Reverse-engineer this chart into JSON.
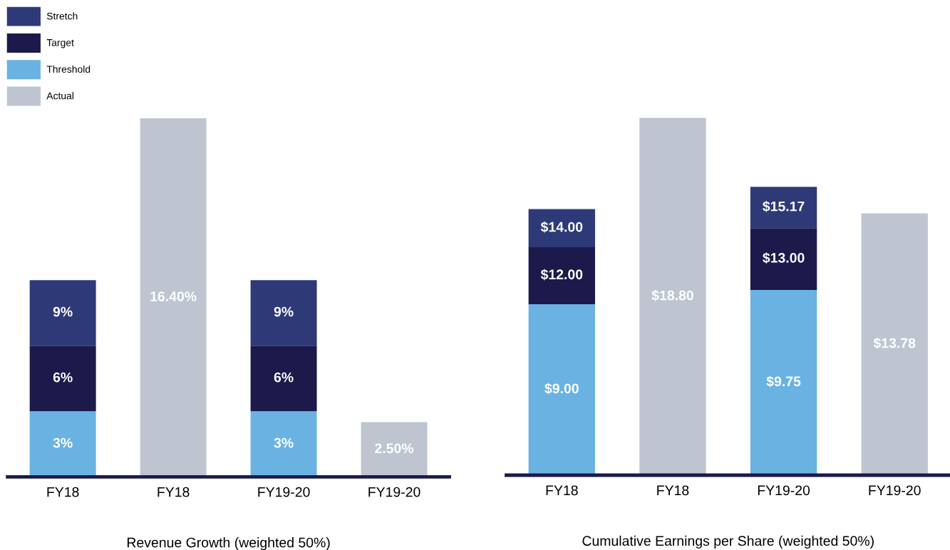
{
  "chart_data": [
    {
      "type": "bar",
      "stacked": true,
      "xlabel": "Revenue Growth (weighted 50%)",
      "categories": [
        "FY18",
        "FY18",
        "FY19-20",
        "FY19-20"
      ],
      "tick_labels": "x",
      "legend": "top left",
      "series": [
        {
          "name": "Actual",
          "color": "#bec5d1",
          "values": [
            null,
            16.4,
            null,
            2.5
          ],
          "value_labels": [
            null,
            "16.40%",
            null,
            "2.50%"
          ]
        },
        {
          "name": "Threshold",
          "color": "#6ab2e2",
          "values": [
            3,
            null,
            3,
            null
          ],
          "value_labels": [
            "3%",
            null,
            "3%",
            null
          ]
        },
        {
          "name": "Target",
          "color": "#1b1a4a",
          "values": [
            3,
            null,
            3,
            null
          ]
        },
        {
          "name": "Stretch",
          "color": "#2e3a78",
          "values": [
            3,
            null,
            3,
            null
          ]
        }
      ],
      "annotations": [
        {
          "text": "6%",
          "x": "FY18",
          "y": 6
        },
        {
          "text": "9%",
          "x": "FY18",
          "y": 9
        },
        {
          "text": "6%",
          "x": "FY19-20",
          "y": 6
        },
        {
          "text": "9%",
          "x": "FY19-20",
          "y": 9
        }
      ]
    },
    {
      "type": "bar",
      "stacked": true,
      "xlabel": "Cumulative Earnings per Share (weighted 50%)",
      "categories": [
        "FY18",
        "FY18",
        "FY19-20",
        "FY19-20"
      ],
      "tick_labels": "x",
      "series": [
        {
          "color": "#bec5d1",
          "values": [
            null,
            18.8,
            null,
            13.78
          ],
          "value_labels": [
            null,
            "$18.80",
            null,
            "$13.78"
          ]
        },
        {
          "color": "#6ab2e2",
          "values": [
            9.0,
            null,
            9.75,
            null
          ],
          "value_labels": [
            "$9.00",
            null,
            "$9.75",
            null
          ]
        },
        {
          "color": "#1b1a4a",
          "values": [
            3.0,
            null,
            3.25,
            null
          ]
        },
        {
          "color": "#2e3a78",
          "values": [
            2.0,
            null,
            2.17,
            null
          ]
        }
      ],
      "annotations": [
        {
          "text": "$12.00",
          "x": "FY18",
          "y": 12.0
        },
        {
          "text": "$14.00",
          "x": "FY18",
          "y": 14.0
        },
        {
          "text": "$13.00",
          "x": "FY19-20",
          "y": 13.0
        },
        {
          "text": "$15.17",
          "x": "FY19-20",
          "y": 15.17
        }
      ]
    }
  ]
}
